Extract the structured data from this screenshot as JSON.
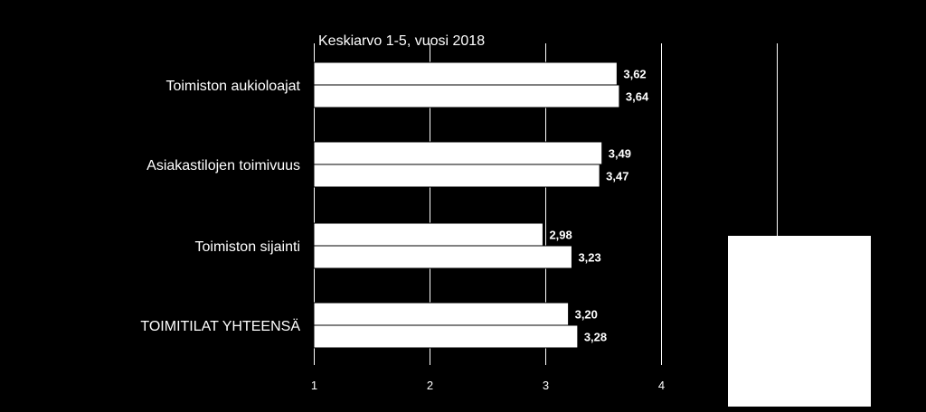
{
  "chart_data": {
    "type": "bar",
    "orientation": "horizontal",
    "title": "Keskiarvo 1-5, vuosi 2018",
    "categories": [
      "Toimiston aukioloajat",
      "Asiakastilojen toimivuus",
      "Toimiston sijainti",
      "TOIMITILAT YHTEENSÄ"
    ],
    "series": [
      {
        "values": [
          3.62,
          3.49,
          2.98,
          3.2
        ],
        "labels": [
          "3,62",
          "3,49",
          "2,98",
          "3,20"
        ]
      },
      {
        "values": [
          3.64,
          3.47,
          3.23,
          3.28
        ],
        "labels": [
          "3,64",
          "3,47",
          "3,23",
          "3,28"
        ]
      }
    ],
    "xlim": [
      1,
      4
    ],
    "xticks": [
      1,
      2,
      3,
      4
    ],
    "xtick_labels": [
      "1",
      "2",
      "3",
      "4"
    ],
    "grid": true,
    "legend": "right",
    "colors": {
      "background": "#000000",
      "bars": "#ffffff",
      "text": "#ffffff",
      "grid": "#ffffff",
      "legend_box": "#ffffff"
    }
  }
}
